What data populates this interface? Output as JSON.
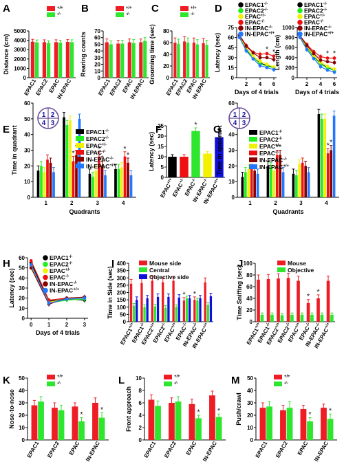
{
  "colors": {
    "wt": "#ee1c24",
    "ko": "#2ee62e",
    "blue": "#1010dd",
    "epac1": "#000000",
    "epac2": "#22ee22",
    "epacp": "#f2f200",
    "epacm": "#ee1111",
    "inm": "#880000",
    "inp": "#2277ff"
  },
  "chart_data": [
    {
      "id": "A",
      "letter": "A",
      "type": "bar",
      "ylabel": "Distance (cm)",
      "categories": [
        "EPAC1",
        "EPAC2",
        "EPAC",
        "IN-EPAC"
      ],
      "ylim": [
        0,
        5000
      ],
      "yticks": [
        0,
        1000,
        2000,
        3000,
        4000,
        5000
      ],
      "legend": [
        "+/+",
        "-/-"
      ],
      "series": [
        {
          "values": [
            3850,
            3800,
            3800,
            3820
          ],
          "err": [
            250,
            250,
            250,
            250
          ]
        },
        {
          "values": [
            3780,
            3700,
            3750,
            3800
          ],
          "err": [
            250,
            250,
            250,
            250
          ]
        }
      ],
      "stars": []
    },
    {
      "id": "B",
      "letter": "B",
      "type": "bar",
      "ylabel": "Rearing counts",
      "categories": [
        "EPAC1",
        "EPAC2",
        "EPAC",
        "IN-EPAC"
      ],
      "ylim": [
        0,
        70
      ],
      "yticks": [
        0,
        10,
        20,
        30,
        40,
        50,
        60,
        70
      ],
      "legend": [
        "+/+",
        "-/-"
      ],
      "series": [
        {
          "values": [
            53,
            51,
            53,
            53
          ],
          "err": [
            5,
            5,
            5,
            5
          ]
        },
        {
          "values": [
            50,
            51,
            52,
            55
          ],
          "err": [
            5,
            5,
            5,
            5
          ]
        }
      ],
      "stars": []
    },
    {
      "id": "C",
      "letter": "C",
      "type": "bar",
      "ylabel": "Grooming time (sec)",
      "categories": [
        "EPAC1",
        "EPAC2",
        "EPAC",
        "IN-EPAC"
      ],
      "ylim": [
        0,
        80
      ],
      "yticks": [
        0,
        20,
        40,
        60,
        80
      ],
      "legend": [
        "+/+",
        "-/-"
      ],
      "series": [
        {
          "values": [
            60,
            62,
            60,
            59
          ],
          "err": [
            8,
            8,
            8,
            8
          ]
        },
        {
          "values": [
            58,
            60,
            57,
            56
          ],
          "err": [
            8,
            8,
            8,
            8
          ]
        }
      ],
      "stars": []
    },
    {
      "id": "D1",
      "letter": "D",
      "type": "line",
      "ylabel": "Latency (sec)",
      "xlabel": "Days of 4 trials",
      "x": [
        1,
        2,
        3,
        4,
        5,
        6
      ],
      "xticks": [
        2,
        4,
        6
      ],
      "xlim": [
        0.6,
        6.4
      ],
      "ylim": [
        0,
        75
      ],
      "yticks": [
        0,
        15,
        30,
        45,
        60,
        75
      ],
      "legend": [
        "EPAC1-/-",
        "EPAC2-/-",
        "EPAC+/-",
        "EPAC-/-",
        "IN-EPAC-/-",
        "IN-EPAC+/+"
      ],
      "series": [
        {
          "values": [
            62,
            42,
            30,
            22,
            18,
            15
          ]
        },
        {
          "values": [
            61,
            43,
            30,
            21,
            17,
            15
          ]
        },
        {
          "values": [
            63,
            44,
            32,
            25,
            20,
            16
          ]
        },
        {
          "values": [
            64,
            48,
            38,
            35,
            36,
            32
          ]
        },
        {
          "values": [
            63,
            47,
            37,
            30,
            30,
            27
          ]
        },
        {
          "values": [
            60,
            40,
            28,
            18,
            15,
            12
          ]
        }
      ],
      "stars": [
        {
          "x": 5,
          "y": 39,
          "t": "*"
        },
        {
          "x": 6,
          "y": 35,
          "t": "*"
        }
      ]
    },
    {
      "id": "D2",
      "letter": "",
      "type": "line",
      "ylabel": "Length (cm)",
      "xlabel": "Days of 4 trials",
      "x": [
        1,
        2,
        3,
        4,
        5,
        6
      ],
      "xticks": [
        2,
        4,
        6
      ],
      "xlim": [
        0.6,
        6.4
      ],
      "ylim": [
        0,
        1000
      ],
      "yticks": [
        0,
        200,
        400,
        600,
        800,
        1000
      ],
      "legend": [
        "EPAC1-/-",
        "EPAC2-/-",
        "EPAC+/-",
        "EPAC-/-",
        "IN-EPAC-/-",
        "IN-EPAC+/+"
      ],
      "series": [
        {
          "values": [
            820,
            600,
            420,
            280,
            200,
            150
          ]
        },
        {
          "values": [
            810,
            590,
            410,
            270,
            190,
            145
          ]
        },
        {
          "values": [
            830,
            620,
            440,
            310,
            230,
            170
          ]
        },
        {
          "values": [
            840,
            660,
            520,
            420,
            390,
            390
          ]
        },
        {
          "values": [
            830,
            640,
            480,
            350,
            320,
            300
          ]
        },
        {
          "values": [
            800,
            560,
            380,
            220,
            150,
            110
          ]
        }
      ],
      "stars": [
        {
          "x": 5,
          "y": 440,
          "t": "*"
        },
        {
          "x": 6,
          "y": 440,
          "t": "*"
        }
      ]
    },
    {
      "id": "E",
      "letter": "E",
      "type": "bar",
      "ylabel": "Time in quadrant",
      "xlabel": "Quadrants",
      "categories": [
        "1",
        "2",
        "3",
        "4"
      ],
      "ylim": [
        0,
        60
      ],
      "yticks": [
        0,
        10,
        20,
        30,
        40,
        50,
        60
      ],
      "legend": [
        "EPAC1-/-",
        "EPAC2-/-",
        "EPAC+/-",
        "EPAC-/-",
        "IN-EPAC-/-",
        "IN-EPAC+/+"
      ],
      "series": [
        {
          "values": [
            17,
            51,
            15,
            18
          ]
        },
        {
          "values": [
            20,
            46,
            13,
            18
          ]
        },
        {
          "values": [
            16,
            49,
            17,
            19
          ]
        },
        {
          "values": [
            24,
            23,
            26,
            26
          ]
        },
        {
          "values": [
            22,
            27,
            20,
            22
          ]
        },
        {
          "values": [
            16,
            50,
            14,
            14
          ]
        }
      ],
      "err": 3,
      "stars": [
        {
          "i": 1,
          "s": 3,
          "t": "*"
        },
        {
          "i": 1,
          "s": 4,
          "t": "*"
        },
        {
          "i": 2,
          "s": 3,
          "t": "*"
        },
        {
          "i": 2,
          "s": 4,
          "t": "*"
        },
        {
          "i": 3,
          "s": 3,
          "t": "*"
        },
        {
          "i": 3,
          "s": 4,
          "t": "*"
        }
      ],
      "maze": [
        "1",
        "2",
        "4",
        "3"
      ]
    },
    {
      "id": "F",
      "letter": "F",
      "type": "bar",
      "ylabel": "Latency (sec)",
      "categories": [
        "EPAC+/+",
        "EPAC+/-",
        "EPAC-/-",
        "IN-EPAC-/-",
        "IN-EPAC+/+"
      ],
      "ylim": [
        0,
        25
      ],
      "yticks": [
        0,
        5,
        10,
        15,
        20,
        25
      ],
      "series": [
        {
          "values": [
            10,
            10,
            22.5,
            11.5,
            19.5
          ],
          "err": [
            1,
            1,
            1.5,
            1,
            1.5
          ],
          "colors": [
            "#000000",
            "#ee1111",
            "#2ee62e",
            "#f2f200",
            "#1010dd"
          ]
        }
      ],
      "stars": [
        {
          "i": 2,
          "s": 0,
          "t": "*"
        },
        {
          "i": 4,
          "s": 0,
          "t": "*"
        }
      ]
    },
    {
      "id": "G",
      "letter": "G",
      "type": "bar",
      "ylabel": "Time in quadrant",
      "xlabel": "Quadrants",
      "categories": [
        "1",
        "2",
        "3",
        "4"
      ],
      "ylim": [
        0,
        60
      ],
      "yticks": [
        0,
        10,
        20,
        30,
        40,
        50,
        60
      ],
      "legend": [
        "EPAC1-/-",
        "EPAC2-/-",
        "EPAC+/-",
        "EPAC-/-",
        "IN-EPAC-/-",
        "IN-EPAC+/+"
      ],
      "series": [
        {
          "values": [
            13,
            20,
            15,
            53
          ]
        },
        {
          "values": [
            16,
            19,
            14,
            50
          ]
        },
        {
          "values": [
            18,
            17,
            21,
            50
          ]
        },
        {
          "values": [
            18,
            27,
            22,
            28
          ]
        },
        {
          "values": [
            17,
            27,
            20,
            30
          ]
        },
        {
          "values": [
            15,
            16,
            16,
            52
          ]
        }
      ],
      "err": 3,
      "stars": [
        {
          "i": 1,
          "s": 3,
          "t": "*"
        },
        {
          "i": 1,
          "s": 4,
          "t": "*"
        },
        {
          "i": 3,
          "s": 3,
          "t": "*"
        },
        {
          "i": 3,
          "s": 4,
          "t": "*"
        }
      ],
      "maze": [
        "1",
        "2",
        "4",
        "3"
      ]
    },
    {
      "id": "H",
      "letter": "H",
      "type": "line",
      "ylabel": "Latency (sec)",
      "xlabel": "Days of 4 trials",
      "x": [
        0,
        1,
        2,
        3
      ],
      "xticks": [
        0,
        1,
        2,
        3
      ],
      "xlim": [
        -0.2,
        3.2
      ],
      "ylim": [
        0,
        60
      ],
      "yticks": [
        0,
        10,
        20,
        30,
        40,
        50,
        60
      ],
      "legend": [
        "EPAC1-/-",
        "EPAC2-/-",
        "EPAC+/-",
        "EPAC-/-",
        "IN-EPAC-/-",
        "IN-EPAC+/+"
      ],
      "series": [
        {
          "values": [
            55,
            17,
            19,
            18
          ]
        },
        {
          "values": [
            53,
            15,
            18,
            19
          ]
        },
        {
          "values": [
            52,
            16,
            19,
            20
          ]
        },
        {
          "values": [
            57,
            18,
            20,
            21
          ]
        },
        {
          "values": [
            50,
            14,
            20,
            21
          ]
        },
        {
          "values": [
            53,
            15,
            19,
            20
          ]
        }
      ],
      "stars": []
    },
    {
      "id": "I",
      "letter": "I",
      "type": "bar",
      "ylabel": "Time in Side (sec)",
      "categories": [
        "EPAC1+/+",
        "EPAC1-/-",
        "EPAC2+/+",
        "EPAC2-/-",
        "EPAC+/+",
        "EPAC-/-",
        "IN-EPAC-/-",
        "IN-EPAC+/+"
      ],
      "ylim": [
        0,
        400
      ],
      "yticks": [
        0,
        50,
        100,
        150,
        200,
        250,
        300,
        350,
        400
      ],
      "legend": [
        "Mouse side",
        "Central",
        "Objective side"
      ],
      "series": [
        {
          "values": [
            260,
            265,
            280,
            270,
            280,
            145,
            150,
            270
          ],
          "err": [
            30,
            30,
            30,
            30,
            30,
            20,
            20,
            30
          ]
        },
        {
          "values": [
            110,
            100,
            105,
            95,
            100,
            160,
            145,
            115
          ],
          "err": [
            15,
            15,
            15,
            15,
            15,
            15,
            15,
            15
          ]
        },
        {
          "values": [
            150,
            160,
            170,
            170,
            165,
            160,
            160,
            175
          ],
          "err": [
            20,
            20,
            20,
            20,
            20,
            20,
            20,
            20
          ]
        }
      ],
      "stars": [
        {
          "i": 5,
          "s": 0,
          "t": "*"
        },
        {
          "i": 6,
          "s": 0,
          "t": "*"
        }
      ]
    },
    {
      "id": "J",
      "letter": "J",
      "type": "bar",
      "ylabel": "Time Sniffing (sec)",
      "categories": [
        "EPAC1+/+",
        "EPAC1-/-",
        "EPAC2+/+",
        "EPAC2-/-",
        "EPAC+/+",
        "EPAC-/-",
        "IN-EPAC-/-",
        "IN-EPAC+/+"
      ],
      "ylim": [
        0,
        100
      ],
      "yticks": [
        0,
        20,
        40,
        60,
        80,
        100
      ],
      "legend": [
        "Mouse",
        "Objective"
      ],
      "series": [
        {
          "values": [
            72,
            73,
            74,
            75,
            70,
            32,
            40,
            70
          ],
          "err": [
            8,
            8,
            8,
            8,
            8,
            6,
            6,
            8
          ]
        },
        {
          "values": [
            12,
            12,
            11,
            12,
            12,
            12,
            12,
            12
          ],
          "err": [
            3,
            3,
            3,
            3,
            3,
            3,
            3,
            3
          ]
        }
      ],
      "stars": [
        {
          "i": 5,
          "s": 0,
          "t": "*"
        },
        {
          "i": 6,
          "s": 0,
          "t": "*"
        }
      ]
    },
    {
      "id": "K",
      "letter": "K",
      "type": "bar",
      "ylabel": "Nose-to-nose",
      "categories": [
        "EPAC1",
        "EPAC2",
        "EPAC",
        "IN-EPAC"
      ],
      "ylim": [
        0,
        50
      ],
      "yticks": [
        0,
        10,
        20,
        30,
        40,
        50
      ],
      "legend": [
        "+/+",
        "-/-"
      ],
      "series": [
        {
          "values": [
            28,
            26,
            27,
            30
          ],
          "err": [
            4,
            4,
            3,
            4
          ]
        },
        {
          "values": [
            31,
            24,
            15,
            18
          ],
          "err": [
            4,
            4,
            3,
            4
          ]
        }
      ],
      "stars": [
        {
          "i": 2,
          "s": 1,
          "t": "*"
        },
        {
          "i": 3,
          "s": 1,
          "t": "*"
        }
      ]
    },
    {
      "id": "L",
      "letter": "L",
      "type": "bar",
      "ylabel": "Front approach",
      "categories": [
        "EPAC1",
        "EPAC2",
        "EPAC",
        "IN-EPAC"
      ],
      "ylim": [
        0,
        10
      ],
      "yticks": [
        0,
        2,
        4,
        6,
        8,
        10
      ],
      "legend": [
        "+/+",
        "-/-"
      ],
      "series": [
        {
          "values": [
            6.5,
            6.0,
            5.8,
            7.2
          ],
          "err": [
            0.8,
            0.8,
            0.8,
            0.7
          ]
        },
        {
          "values": [
            5.5,
            6.2,
            3.5,
            3.7
          ],
          "err": [
            0.8,
            0.8,
            0.5,
            0.5
          ]
        }
      ],
      "stars": [
        {
          "i": 2,
          "s": 1,
          "t": "*"
        },
        {
          "i": 3,
          "s": 1,
          "t": "*"
        }
      ]
    },
    {
      "id": "M",
      "letter": "M",
      "type": "bar",
      "ylabel": "Push/crawl",
      "categories": [
        "EPAC1",
        "EPAC2",
        "EPAC",
        "IN-EPAC"
      ],
      "ylim": [
        0,
        50
      ],
      "yticks": [
        0,
        10,
        20,
        30,
        40,
        50
      ],
      "legend": [
        "+/+",
        "-/-"
      ],
      "series": [
        {
          "values": [
            26,
            24,
            25,
            26
          ],
          "err": [
            4,
            4,
            3,
            3
          ]
        },
        {
          "values": [
            27,
            26,
            15,
            17
          ],
          "err": [
            4,
            5,
            3,
            4
          ]
        }
      ],
      "stars": [
        {
          "i": 2,
          "s": 1,
          "t": "*"
        },
        {
          "i": 3,
          "s": 1,
          "t": "*"
        }
      ]
    }
  ]
}
